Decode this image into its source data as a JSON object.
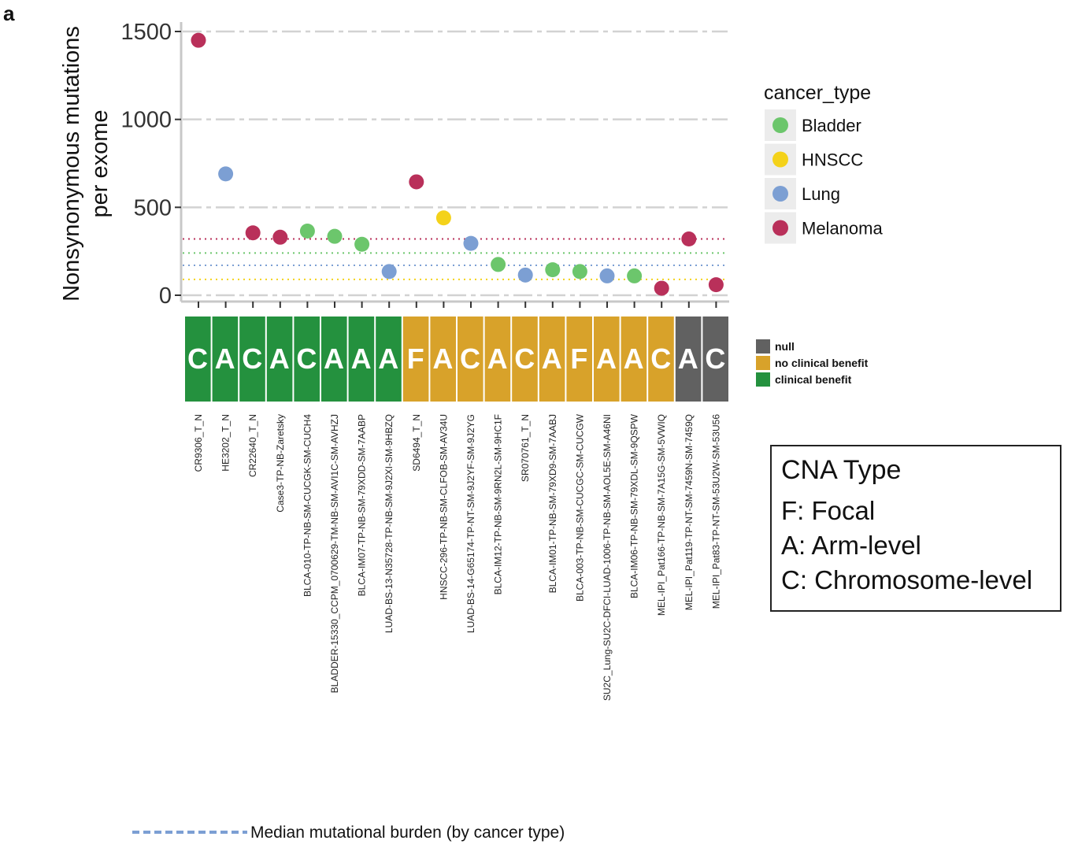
{
  "panel_label": "a",
  "colors": {
    "Bladder": "#6cc66c",
    "HNSCC": "#f4d21a",
    "Lung": "#7c9fd3",
    "Melanoma": "#b9305a",
    "null": "#616161",
    "no clinical benefit": "#d8a22a",
    "clinical benefit": "#24913e",
    "grid": "#d2d2d2",
    "axis": "#c8c8c8"
  },
  "cna_box": {
    "title": "CNA Type",
    "lines": [
      "F: Focal",
      "A: Arm-level",
      "C: Chromosome-level"
    ]
  },
  "chart_data": {
    "type": "scatter",
    "ylabel": [
      "Nonsynonymous mutations",
      "per exome"
    ],
    "ylim": [
      -30,
      1500
    ],
    "yticks": [
      0,
      500,
      1000,
      1500
    ],
    "grid": "dashed horizontal",
    "legend_title": "cancer_type",
    "legend_entries": [
      "Bladder",
      "HNSCC",
      "Lung",
      "Melanoma"
    ],
    "legend_position": "right",
    "samples": [
      {
        "id": "CR9306_T_N",
        "y": 1450,
        "cancer_type": "Melanoma",
        "cna": "C",
        "benefit": "clinical benefit"
      },
      {
        "id": "HE3202_T_N",
        "y": 690,
        "cancer_type": "Lung",
        "cna": "A",
        "benefit": "clinical benefit"
      },
      {
        "id": "CR22640_T_N",
        "y": 355,
        "cancer_type": "Melanoma",
        "cna": "C",
        "benefit": "clinical benefit"
      },
      {
        "id": "Case3-TP-NB-Zaretsky",
        "y": 330,
        "cancer_type": "Melanoma",
        "cna": "A",
        "benefit": "clinical benefit"
      },
      {
        "id": "BLCA-010-TP-NB-SM-CUCGK-SM-CUCH4",
        "y": 365,
        "cancer_type": "Bladder",
        "cna": "C",
        "benefit": "clinical benefit"
      },
      {
        "id": "BLADDER-15330_CCPM_0700629-TM-NB-SM-AVI1C-SM-AVHZJ",
        "y": 335,
        "cancer_type": "Bladder",
        "cna": "A",
        "benefit": "clinical benefit"
      },
      {
        "id": "BLCA-IM07-TP-NB-SM-79XDD-SM-7AABP",
        "y": 290,
        "cancer_type": "Bladder",
        "cna": "A",
        "benefit": "clinical benefit"
      },
      {
        "id": "LUAD-BS-13-N35728-TP-NB-SM-9J2XI-SM-9HBZQ",
        "y": 135,
        "cancer_type": "Lung",
        "cna": "A",
        "benefit": "clinical benefit"
      },
      {
        "id": "SD6494_T_N",
        "y": 645,
        "cancer_type": "Melanoma",
        "cna": "F",
        "benefit": "no clinical benefit"
      },
      {
        "id": "HNSCC-296-TP-NB-SM-CLFOB-SM-AV34U",
        "y": 440,
        "cancer_type": "HNSCC",
        "cna": "A",
        "benefit": "no clinical benefit"
      },
      {
        "id": "LUAD-BS-14-G65174-TP-NT-SM-9J2YF-SM-9J2YG",
        "y": 295,
        "cancer_type": "Lung",
        "cna": "C",
        "benefit": "no clinical benefit"
      },
      {
        "id": "BLCA-IM12-TP-NB-SM-9RN2L-SM-9HC1F",
        "y": 175,
        "cancer_type": "Bladder",
        "cna": "A",
        "benefit": "no clinical benefit"
      },
      {
        "id": "SR070761_T_N",
        "y": 115,
        "cancer_type": "Lung",
        "cna": "C",
        "benefit": "no clinical benefit"
      },
      {
        "id": "BLCA-IM01-TP-NB-SM-79XD9-SM-7AABJ",
        "y": 145,
        "cancer_type": "Bladder",
        "cna": "A",
        "benefit": "no clinical benefit"
      },
      {
        "id": "BLCA-003-TP-NB-SM-CUCGC-SM-CUCGW",
        "y": 135,
        "cancer_type": "Bladder",
        "cna": "F",
        "benefit": "no clinical benefit"
      },
      {
        "id": "SU2C_Lung-SU2C-DFCI-LUAD-1006-TP-NB-SM-AOL5E-SM-A46NI",
        "y": 110,
        "cancer_type": "Lung",
        "cna": "A",
        "benefit": "no clinical benefit"
      },
      {
        "id": "BLCA-IM06-TP-NB-SM-79XDL-SM-9QSPW",
        "y": 110,
        "cancer_type": "Bladder",
        "cna": "A",
        "benefit": "no clinical benefit"
      },
      {
        "id": "MEL-IPI_Pat166-TP-NB-SM-7A15G-SM-5VWIQ",
        "y": 40,
        "cancer_type": "Melanoma",
        "cna": "C",
        "benefit": "no clinical benefit"
      },
      {
        "id": "MEL-IPI_Pat119-TP-NT-SM-7459N-SM-7459Q",
        "y": 320,
        "cancer_type": "Melanoma",
        "cna": "A",
        "benefit": "null"
      },
      {
        "id": "MEL-IPI_Pat83-TP-NT-SM-53U2W-SM-53U56",
        "y": 60,
        "cancer_type": "Melanoma",
        "cna": "C",
        "benefit": "null"
      }
    ],
    "medians": [
      {
        "cancer_type": "Melanoma",
        "y": 320
      },
      {
        "cancer_type": "Bladder",
        "y": 240
      },
      {
        "cancer_type": "Lung",
        "y": 170
      },
      {
        "cancer_type": "HNSCC",
        "y": 90
      }
    ],
    "benefit_legend": [
      "null",
      "no clinical benefit",
      "clinical benefit"
    ],
    "median_legend": "Median mutational burden (by cancer type)"
  }
}
